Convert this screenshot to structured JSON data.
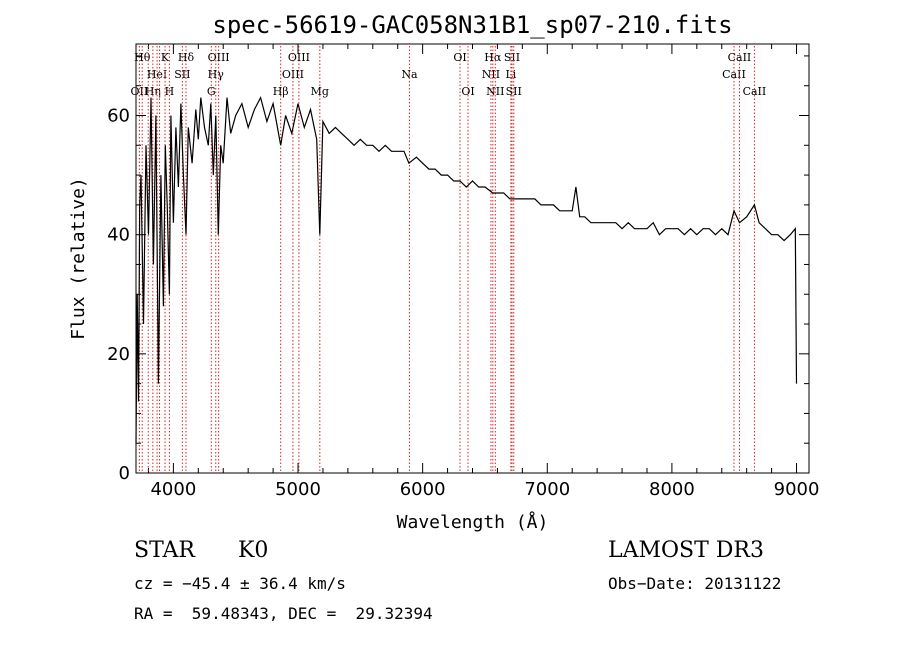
{
  "chart_data": {
    "type": "line",
    "title": "spec-56619-GAC058N31B1_sp07-210.fits",
    "xlabel": "Wavelength (Å)",
    "ylabel": "Flux (relative)",
    "xlim": [
      3700,
      9100
    ],
    "ylim": [
      0,
      72
    ],
    "xticks": [
      4000,
      5000,
      6000,
      7000,
      8000,
      9000
    ],
    "yticks": [
      0,
      20,
      40,
      60
    ],
    "grid": false,
    "series": [
      {
        "name": "flux",
        "x": [
          3700,
          3710,
          3720,
          3730,
          3740,
          3760,
          3780,
          3800,
          3820,
          3840,
          3860,
          3880,
          3900,
          3920,
          3935,
          3950,
          3968,
          3980,
          4000,
          4020,
          4040,
          4060,
          4080,
          4101,
          4120,
          4150,
          4180,
          4200,
          4220,
          4250,
          4280,
          4300,
          4320,
          4340,
          4360,
          4380,
          4400,
          4430,
          4460,
          4500,
          4550,
          4600,
          4650,
          4700,
          4750,
          4800,
          4861,
          4900,
          4950,
          5000,
          5050,
          5100,
          5150,
          5175,
          5200,
          5250,
          5300,
          5350,
          5400,
          5450,
          5500,
          5550,
          5600,
          5650,
          5700,
          5750,
          5800,
          5850,
          5890,
          5950,
          6000,
          6050,
          6100,
          6150,
          6200,
          6250,
          6300,
          6350,
          6400,
          6450,
          6500,
          6563,
          6600,
          6650,
          6700,
          6750,
          6800,
          6850,
          6900,
          6950,
          7000,
          7050,
          7100,
          7150,
          7200,
          7230,
          7260,
          7300,
          7350,
          7400,
          7450,
          7500,
          7550,
          7600,
          7650,
          7700,
          7750,
          7800,
          7850,
          7900,
          7950,
          8000,
          8050,
          8100,
          8150,
          8200,
          8250,
          8300,
          8350,
          8400,
          8450,
          8498,
          8542,
          8600,
          8662,
          8700,
          8750,
          8800,
          8850,
          8900,
          8950,
          8990,
          9000
        ],
        "y": [
          5,
          30,
          12,
          45,
          50,
          25,
          55,
          40,
          63,
          35,
          60,
          15,
          50,
          28,
          55,
          45,
          30,
          60,
          42,
          58,
          48,
          62,
          50,
          40,
          58,
          52,
          61,
          56,
          63,
          58,
          55,
          62,
          50,
          60,
          40,
          55,
          52,
          63,
          57,
          60,
          62,
          58,
          61,
          63,
          59,
          62,
          55,
          60,
          57,
          62,
          58,
          61,
          56,
          40,
          59,
          57,
          58,
          57,
          56,
          55,
          56,
          55,
          55,
          54,
          55,
          54,
          54,
          54,
          52,
          53,
          52,
          51,
          51,
          50,
          50,
          49,
          49,
          48,
          49,
          48,
          48,
          47,
          47,
          47,
          46,
          46,
          46,
          46,
          46,
          45,
          45,
          45,
          44,
          44,
          44,
          48,
          43,
          43,
          42,
          42,
          42,
          42,
          42,
          41,
          42,
          41,
          41,
          41,
          42,
          40,
          41,
          41,
          41,
          40,
          41,
          40,
          41,
          41,
          40,
          41,
          40,
          44,
          42,
          43,
          45,
          42,
          41,
          40,
          40,
          39,
          40,
          41,
          15
        ]
      }
    ],
    "lines": [
      {
        "wl": 3727,
        "label": "OII",
        "row": 3
      },
      {
        "wl": 3750,
        "label": "Hθ",
        "row": 1
      },
      {
        "wl": 3798,
        "label": "",
        "row": 0
      },
      {
        "wl": 3835,
        "label": "Hη",
        "row": 3
      },
      {
        "wl": 3869,
        "label": "HeI",
        "row": 2
      },
      {
        "wl": 3889,
        "label": "",
        "row": 0
      },
      {
        "wl": 3933,
        "label": "K",
        "row": 1
      },
      {
        "wl": 3968,
        "label": "H",
        "row": 3
      },
      {
        "wl": 4072,
        "label": "SII",
        "row": 2
      },
      {
        "wl": 4101,
        "label": "Hδ",
        "row": 1
      },
      {
        "wl": 4304,
        "label": "G",
        "row": 3
      },
      {
        "wl": 4340,
        "label": "Hγ",
        "row": 2
      },
      {
        "wl": 4363,
        "label": "OIII",
        "row": 1
      },
      {
        "wl": 4861,
        "label": "Hβ",
        "row": 3
      },
      {
        "wl": 4959,
        "label": "OIII",
        "row": 2
      },
      {
        "wl": 5007,
        "label": "OIII",
        "row": 1
      },
      {
        "wl": 5175,
        "label": "Mg",
        "row": 3
      },
      {
        "wl": 5894,
        "label": "Na",
        "row": 2
      },
      {
        "wl": 6300,
        "label": "OI",
        "row": 1
      },
      {
        "wl": 6364,
        "label": "OI",
        "row": 3
      },
      {
        "wl": 6548,
        "label": "NII",
        "row": 2
      },
      {
        "wl": 6563,
        "label": "Hα",
        "row": 1
      },
      {
        "wl": 6583,
        "label": "NII",
        "row": 3
      },
      {
        "wl": 6708,
        "label": "Li",
        "row": 2
      },
      {
        "wl": 6717,
        "label": "SII",
        "row": 1
      },
      {
        "wl": 6731,
        "label": "SII",
        "row": 3
      },
      {
        "wl": 8498,
        "label": "CaII",
        "row": 2
      },
      {
        "wl": 8542,
        "label": "CaII",
        "row": 1
      },
      {
        "wl": 8662,
        "label": "CaII",
        "row": 3
      }
    ]
  },
  "info": {
    "class": "STAR",
    "subclass": "K0",
    "survey": "LAMOST DR3",
    "cz": "cz = −45.4 ± 36.4 km/s",
    "obs_date": "Obs−Date: 20131122",
    "coords": "RA =  59.48343, DEC =  29.32394"
  }
}
